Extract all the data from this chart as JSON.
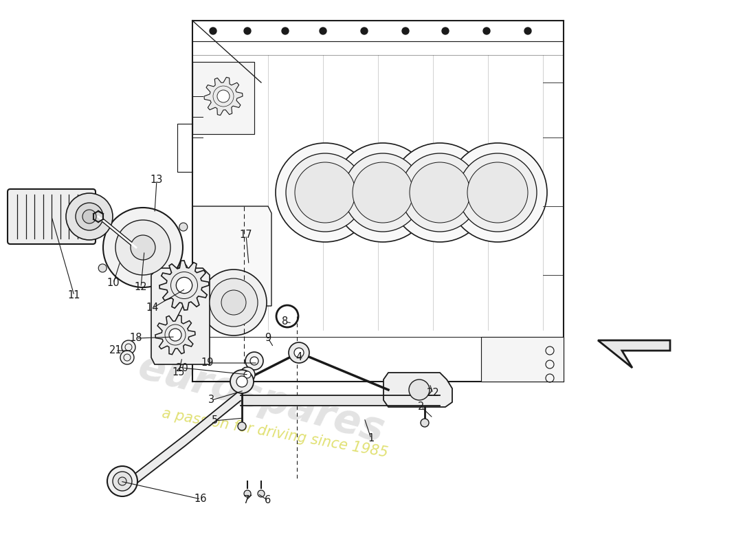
{
  "bg_color": "#ffffff",
  "line_color": "#1a1a1a",
  "figsize": [
    11.0,
    8.0
  ],
  "dpi": 100,
  "watermark1": "eurospares",
  "watermark2": "a passion for driving since 1985",
  "wm1_color": "#c8c8c8",
  "wm2_color": "#c8c800",
  "wm1_alpha": 0.5,
  "wm2_alpha": 0.55,
  "part_labels": [
    [
      "1",
      540,
      638
    ],
    [
      "2",
      613,
      592
    ],
    [
      "3",
      308,
      582
    ],
    [
      "4",
      435,
      520
    ],
    [
      "5",
      312,
      612
    ],
    [
      "6",
      390,
      728
    ],
    [
      "7",
      358,
      728
    ],
    [
      "8",
      415,
      468
    ],
    [
      "9",
      390,
      492
    ],
    [
      "10",
      165,
      412
    ],
    [
      "11",
      108,
      430
    ],
    [
      "12",
      205,
      418
    ],
    [
      "13",
      228,
      262
    ],
    [
      "14",
      222,
      448
    ],
    [
      "15",
      260,
      542
    ],
    [
      "16",
      292,
      726
    ],
    [
      "17",
      358,
      342
    ],
    [
      "18",
      198,
      492
    ],
    [
      "19",
      302,
      528
    ],
    [
      "20",
      265,
      535
    ],
    [
      "21",
      168,
      510
    ],
    [
      "22",
      630,
      572
    ]
  ]
}
